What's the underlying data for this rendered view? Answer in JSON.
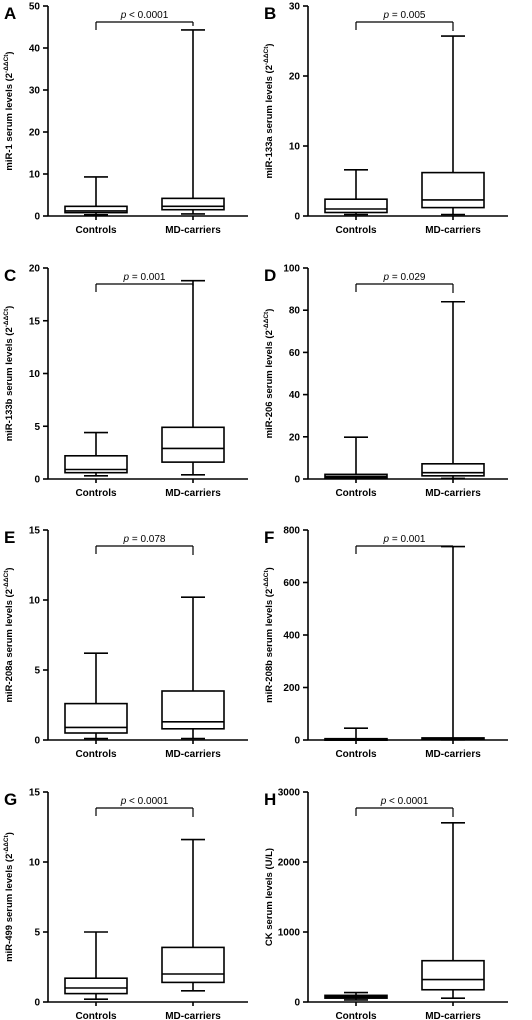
{
  "chart_data": [
    {
      "panel": "A",
      "type": "box",
      "ylabel": "miR-1 serum levels (2",
      "ylabel_sup": "-ΔΔCt",
      "ylabel_close": ")",
      "ylim": [
        0,
        50
      ],
      "yticks": [
        0,
        10,
        20,
        30,
        40,
        50
      ],
      "categories": [
        "Controls",
        "MD-carriers"
      ],
      "boxes": [
        {
          "min": 0.3,
          "q1": 0.8,
          "median": 1.2,
          "q3": 2.3,
          "max": 9.3
        },
        {
          "min": 0.5,
          "q1": 1.5,
          "median": 2.3,
          "q3": 4.2,
          "max": 44.3
        }
      ],
      "p_prefix": "p",
      "p_rest": " < 0.0001"
    },
    {
      "panel": "B",
      "type": "box",
      "ylabel": "miR-133a serum levels (2",
      "ylabel_sup": "-ΔΔCt",
      "ylabel_close": ")",
      "ylim": [
        0,
        30
      ],
      "yticks": [
        0,
        10,
        20,
        30
      ],
      "categories": [
        "Controls",
        "MD-carriers"
      ],
      "boxes": [
        {
          "min": 0.2,
          "q1": 0.5,
          "median": 1.0,
          "q3": 2.4,
          "max": 6.6
        },
        {
          "min": 0.2,
          "q1": 1.2,
          "median": 2.3,
          "q3": 6.2,
          "max": 25.7
        }
      ],
      "p_prefix": "p",
      "p_rest": " = 0.005"
    },
    {
      "panel": "C",
      "type": "box",
      "ylabel": "miR-133b serum levels (2",
      "ylabel_sup": "-ΔΔCt",
      "ylabel_close": ")",
      "ylim": [
        0,
        20
      ],
      "yticks": [
        0,
        5,
        10,
        15,
        20
      ],
      "categories": [
        "Controls",
        "MD-carriers"
      ],
      "boxes": [
        {
          "min": 0.3,
          "q1": 0.6,
          "median": 0.9,
          "q3": 2.2,
          "max": 4.4
        },
        {
          "min": 0.4,
          "q1": 1.6,
          "median": 2.9,
          "q3": 4.9,
          "max": 18.8
        }
      ],
      "p_prefix": "p",
      "p_rest": " = 0.001"
    },
    {
      "panel": "D",
      "type": "box",
      "ylabel": "miR-206 serum levels (2",
      "ylabel_sup": "-ΔΔCt",
      "ylabel_close": ")",
      "ylim": [
        0,
        100
      ],
      "yticks": [
        0,
        20,
        40,
        60,
        80,
        100
      ],
      "categories": [
        "Controls",
        "MD-carriers"
      ],
      "boxes": [
        {
          "min": 0.2,
          "q1": 0.6,
          "median": 1.2,
          "q3": 2.2,
          "max": 19.8
        },
        {
          "min": 0.3,
          "q1": 1.5,
          "median": 3.0,
          "q3": 7.2,
          "max": 84.0
        }
      ],
      "p_prefix": "p",
      "p_rest": " = 0.029"
    },
    {
      "panel": "E",
      "type": "box",
      "ylabel": "miR-208a serum levels (2",
      "ylabel_sup": "-ΔΔCt",
      "ylabel_close": ")",
      "ylim": [
        0,
        15
      ],
      "yticks": [
        0,
        5,
        10,
        15
      ],
      "categories": [
        "Controls",
        "MD-carriers"
      ],
      "boxes": [
        {
          "min": 0.1,
          "q1": 0.5,
          "median": 0.9,
          "q3": 2.6,
          "max": 6.2
        },
        {
          "min": 0.1,
          "q1": 0.8,
          "median": 1.3,
          "q3": 3.5,
          "max": 10.2
        }
      ],
      "p_prefix": "p",
      "p_rest": " = 0.078"
    },
    {
      "panel": "F",
      "type": "box",
      "ylabel": "miR-208b serum levels (2",
      "ylabel_sup": "-ΔΔCt",
      "ylabel_close": ")",
      "ylim": [
        0,
        800
      ],
      "yticks": [
        0,
        200,
        400,
        600,
        800
      ],
      "categories": [
        "Controls",
        "MD-carriers"
      ],
      "boxes": [
        {
          "min": 0.5,
          "q1": 1.5,
          "median": 3.0,
          "q3": 5.0,
          "max": 45.0
        },
        {
          "min": 0.5,
          "q1": 2.0,
          "median": 4.0,
          "q3": 8.0,
          "max": 737.0
        }
      ],
      "p_prefix": "p",
      "p_rest": " = 0.001"
    },
    {
      "panel": "G",
      "type": "box",
      "ylabel": "miR-499 serum levels (2",
      "ylabel_sup": "-ΔΔCt",
      "ylabel_close": ")",
      "ylim": [
        0,
        15
      ],
      "yticks": [
        0,
        5,
        10,
        15
      ],
      "categories": [
        "Controls",
        "MD-carriers"
      ],
      "boxes": [
        {
          "min": 0.2,
          "q1": 0.6,
          "median": 1.0,
          "q3": 1.7,
          "max": 5.0
        },
        {
          "min": 0.8,
          "q1": 1.4,
          "median": 2.0,
          "q3": 3.9,
          "max": 11.6
        }
      ],
      "p_prefix": "p",
      "p_rest": " < 0.0001"
    },
    {
      "panel": "H",
      "type": "box",
      "ylabel": "CK serum levels (U/L)",
      "ylabel_sup": "",
      "ylabel_close": "",
      "ylim": [
        0,
        3000
      ],
      "yticks": [
        0,
        1000,
        2000,
        3000
      ],
      "categories": [
        "Controls",
        "MD-carriers"
      ],
      "boxes": [
        {
          "min": 30,
          "q1": 55,
          "median": 75,
          "q3": 95,
          "max": 135
        },
        {
          "min": 55,
          "q1": 175,
          "median": 320,
          "q3": 590,
          "max": 2560
        }
      ],
      "p_prefix": "p",
      "p_rest": " < 0.0001"
    }
  ]
}
